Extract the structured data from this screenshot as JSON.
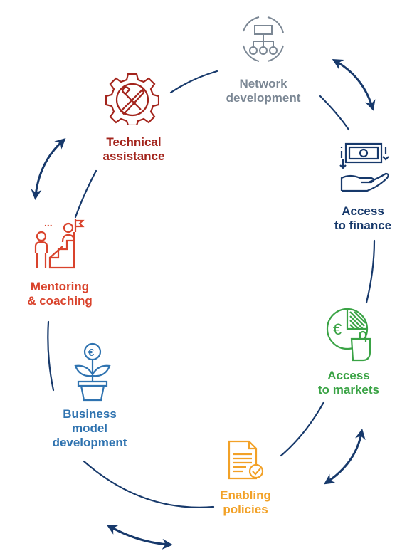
{
  "colors": {
    "navy": "#17396b",
    "grey": "#7b8794",
    "red": "#a3241c",
    "orange_red": "#d9432c",
    "blue": "#2f73b0",
    "orange": "#f2a127",
    "green": "#3aa345"
  },
  "nodes": {
    "network": {
      "label": "Network\ndevelopment",
      "icon": "network-icon",
      "color": "#7b8794"
    },
    "finance": {
      "label": "Access\nto finance",
      "icon": "money-hand-icon",
      "color": "#17396b"
    },
    "markets": {
      "label": "Access\nto markets",
      "icon": "market-chart-icon",
      "color": "#3aa345"
    },
    "policies": {
      "label": "Enabling\npolicies",
      "icon": "policy-document-icon",
      "color": "#f2a127"
    },
    "business": {
      "label": "Business\nmodel\ndevelopment",
      "icon": "euro-plant-icon",
      "color": "#2f73b0"
    },
    "mentoring": {
      "label": "Mentoring\n& coaching",
      "icon": "mentoring-icon",
      "color": "#d9432c"
    },
    "technical": {
      "label": "Technical\nassistance",
      "icon": "gear-tools-icon",
      "color": "#a3241c"
    }
  }
}
